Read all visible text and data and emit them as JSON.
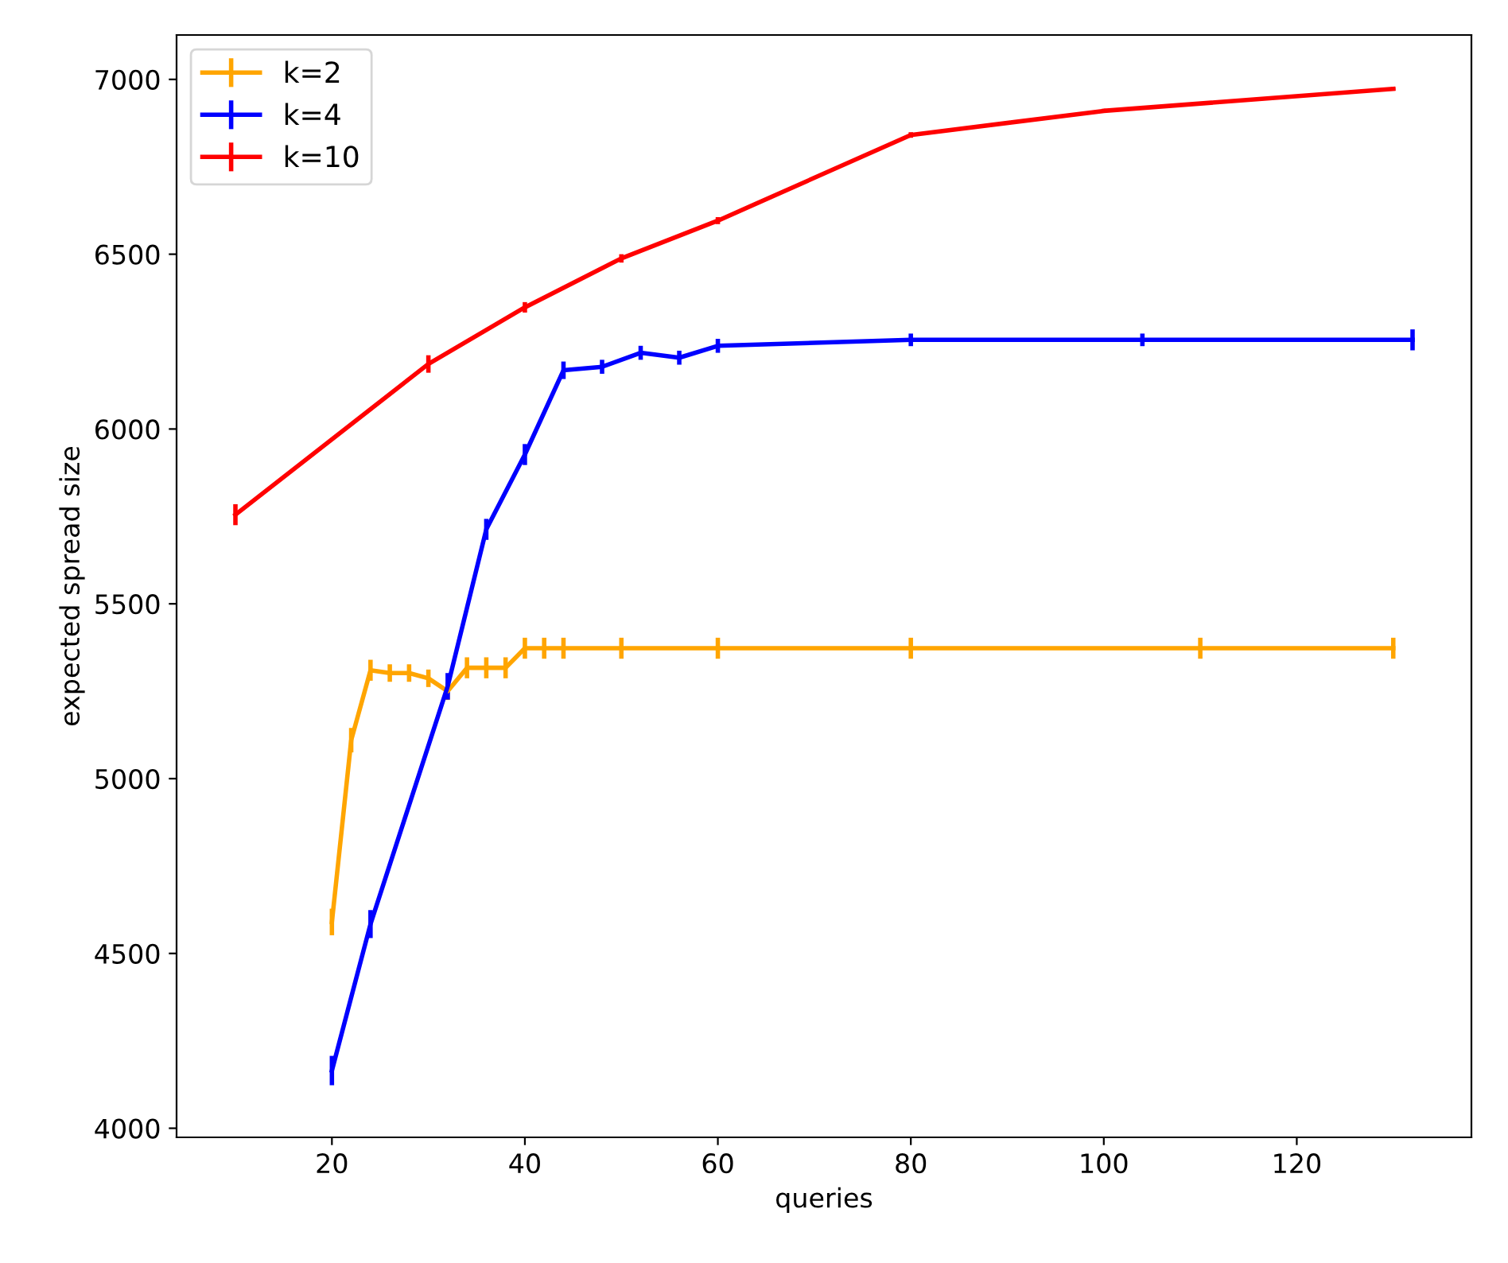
{
  "chart_data": {
    "type": "line",
    "xlabel": "queries",
    "ylabel": "expected spread size",
    "xlim": [
      3.9,
      138.1
    ],
    "ylim": [
      3974,
      7127
    ],
    "xticks": [
      20,
      40,
      60,
      80,
      100,
      120
    ],
    "yticks": [
      4000,
      4500,
      5000,
      5500,
      6000,
      6500,
      7000
    ],
    "grid": false,
    "legend": "top left",
    "marker": "none",
    "line_style": "solid",
    "series": [
      {
        "name": "k=2",
        "color": "#ffa500",
        "x": [
          20,
          22,
          24,
          26,
          28,
          30,
          32,
          34,
          36,
          38,
          40,
          42,
          44,
          50,
          60,
          80,
          110,
          130
        ],
        "values": [
          4590,
          5110,
          5310,
          5302,
          5302,
          5287,
          5250,
          5317,
          5317,
          5317,
          5373,
          5373,
          5373,
          5373,
          5373,
          5373,
          5373,
          5373
        ],
        "errors": [
          38,
          35,
          30,
          25,
          25,
          25,
          25,
          30,
          30,
          30,
          30,
          30,
          30,
          30,
          30,
          30,
          30,
          30
        ]
      },
      {
        "name": "k=4",
        "color": "#0000ff",
        "x": [
          20,
          24,
          32,
          36,
          40,
          44,
          48,
          52,
          56,
          60,
          80,
          104,
          132
        ],
        "values": [
          4165,
          4584,
          5264,
          5713,
          5927,
          6168,
          6178,
          6218,
          6204,
          6238,
          6255,
          6255,
          6255
        ],
        "errors": [
          42,
          40,
          38,
          30,
          30,
          25,
          20,
          20,
          20,
          20,
          18,
          18,
          30
        ]
      },
      {
        "name": "k=10",
        "color": "#ff0000",
        "x": [
          10,
          30,
          40,
          50,
          60,
          80,
          100,
          130
        ],
        "values": [
          5755,
          6186,
          6348,
          6488,
          6596,
          6841,
          6910,
          6973
        ],
        "errors": [
          30,
          25,
          15,
          12,
          10,
          8,
          6,
          5
        ]
      }
    ]
  }
}
